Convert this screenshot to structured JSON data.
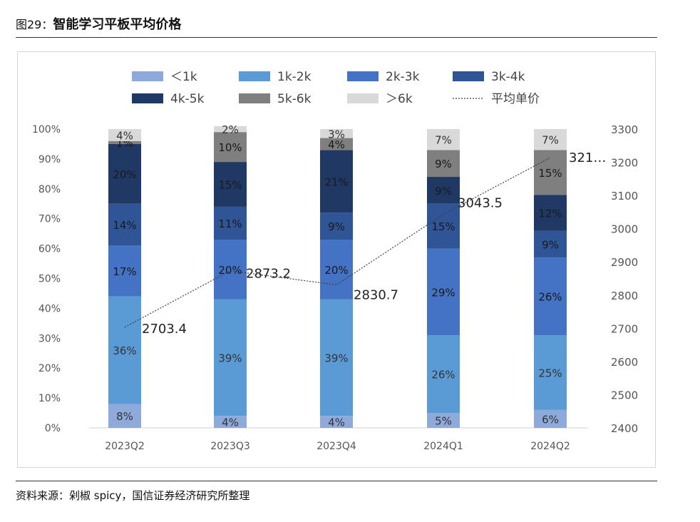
{
  "figure": {
    "number": "图29：",
    "title": "智能学习平板平均价格",
    "source": "资料来源：剁椒 spicy，国信证券经济研究所整理"
  },
  "chart_data": {
    "type": "bar",
    "stacked": true,
    "categories": [
      "2023Q2",
      "2023Q3",
      "2023Q4",
      "2024Q1",
      "2024Q2"
    ],
    "series": [
      {
        "name": "＜1k",
        "color": "#8eaadb",
        "values": [
          8,
          4,
          4,
          5,
          6
        ],
        "labels": [
          "8%",
          "4%",
          "4%",
          "5%",
          "6%"
        ]
      },
      {
        "name": "1k-2k",
        "color": "#5b9bd5",
        "values": [
          36,
          39,
          39,
          26,
          25
        ],
        "labels": [
          "36%",
          "39%",
          "39%",
          "26%",
          "25%"
        ]
      },
      {
        "name": "2k-3k",
        "color": "#4472c4",
        "values": [
          17,
          20,
          20,
          29,
          26
        ],
        "labels": [
          "17%",
          "20%",
          "20%",
          "29%",
          "26%"
        ]
      },
      {
        "name": "3k-4k",
        "color": "#2f5597",
        "values": [
          14,
          11,
          9,
          15,
          9
        ],
        "labels": [
          "14%",
          "11%",
          "9%",
          "15%",
          "9%"
        ]
      },
      {
        "name": "4k-5k",
        "color": "#203864",
        "values": [
          20,
          15,
          21,
          9,
          12
        ],
        "labels": [
          "20%",
          "15%",
          "21%",
          "9%",
          "12%"
        ]
      },
      {
        "name": "5k-6k",
        "color": "#7f7f7f",
        "values": [
          1,
          10,
          4,
          9,
          15
        ],
        "labels": [
          "1%",
          "10%",
          "4%",
          "9%",
          "15%"
        ]
      },
      {
        "name": "＞6k",
        "color": "#d9d9d9",
        "values": [
          4,
          2,
          3,
          7,
          7
        ],
        "labels": [
          "4%",
          "2%",
          "3%",
          "7%",
          "7%"
        ]
      }
    ],
    "line": {
      "name": "平均单价",
      "color": "#404040",
      "values": [
        2703.4,
        2873.2,
        2830.7,
        3043.5,
        3214
      ],
      "labels": [
        "2703.4",
        "2873.2",
        "2830.7",
        "3043.5",
        "321…"
      ]
    },
    "y_left": {
      "min": 0,
      "max": 100,
      "ticks": [
        "0%",
        "10%",
        "20%",
        "30%",
        "40%",
        "50%",
        "60%",
        "70%",
        "80%",
        "90%",
        "100%"
      ]
    },
    "y_right": {
      "min": 2400,
      "max": 3300,
      "ticks": [
        "2400",
        "2500",
        "2600",
        "2700",
        "2800",
        "2900",
        "3000",
        "3100",
        "3200",
        "3300"
      ]
    },
    "legend_position": "top",
    "grid": false
  }
}
